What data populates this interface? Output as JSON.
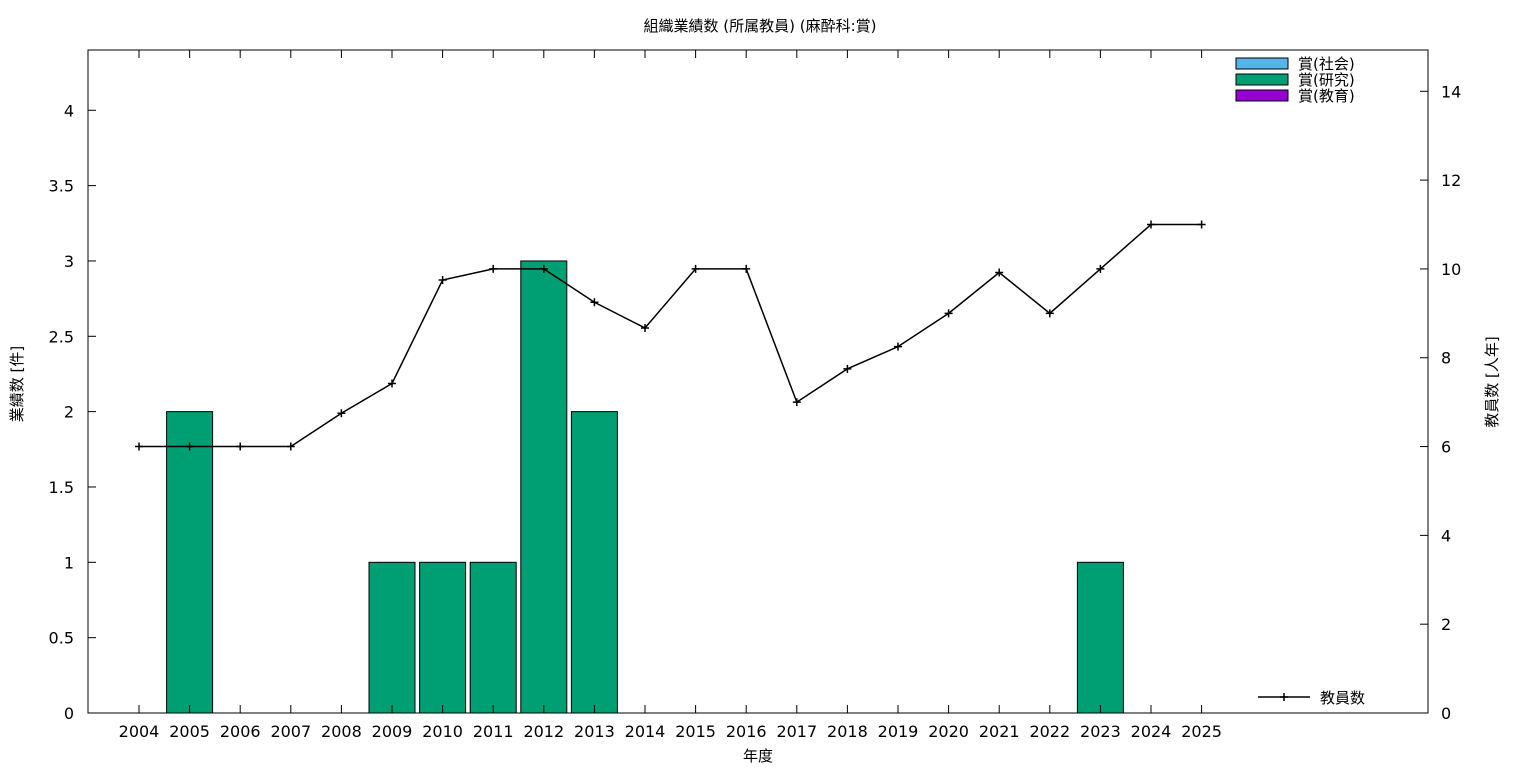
{
  "chart_data": {
    "type": "bar",
    "title": "組織業績数 (所属教員) (麻酔科:賞)",
    "xlabel": "年度",
    "ylabel": "業績数 [件]",
    "y2label": "教員数 [人年]",
    "categories": [
      "2004",
      "2005",
      "2006",
      "2007",
      "2008",
      "2009",
      "2010",
      "2011",
      "2012",
      "2013",
      "2014",
      "2015",
      "2016",
      "2017",
      "2018",
      "2019",
      "2020",
      "2021",
      "2022",
      "2023",
      "2024",
      "2025"
    ],
    "ylim": [
      0,
      4.4
    ],
    "y2lim": [
      0,
      14.93
    ],
    "yticks": [
      "0",
      "0.5",
      "1",
      "1.5",
      "2",
      "2.5",
      "3",
      "3.5",
      "4"
    ],
    "y2ticks": [
      "0",
      "2",
      "4",
      "6",
      "8",
      "10",
      "12",
      "14"
    ],
    "grid": false,
    "legend_position": "top-right",
    "series": [
      {
        "name": "賞(社会)",
        "color": "#56b4e9",
        "values": [
          0,
          0,
          0,
          0,
          0,
          0,
          0,
          0,
          0,
          0,
          0,
          0,
          0,
          0,
          0,
          0,
          0,
          0,
          0,
          0,
          0,
          0
        ]
      },
      {
        "name": "賞(研究)",
        "color": "#009e73",
        "values": [
          0,
          2,
          0,
          0,
          0,
          1,
          1,
          1,
          3,
          2,
          0,
          0,
          0,
          0,
          0,
          0,
          0,
          0,
          0,
          1,
          0,
          0
        ]
      },
      {
        "name": "賞(教育)",
        "color": "#9400d3",
        "values": [
          0,
          0,
          0,
          0,
          0,
          0,
          0,
          0,
          0,
          0,
          0,
          0,
          0,
          0,
          0,
          0,
          0,
          0,
          0,
          0,
          0,
          0
        ]
      }
    ],
    "line_series": {
      "name": "教員数",
      "color": "#000000",
      "axis": "right",
      "values": [
        6,
        6,
        6,
        6,
        6.75,
        7.42,
        9.75,
        10,
        10,
        9.25,
        8.67,
        10,
        10,
        7,
        7.75,
        8.25,
        9,
        9.92,
        9,
        10,
        11,
        11
      ]
    }
  }
}
